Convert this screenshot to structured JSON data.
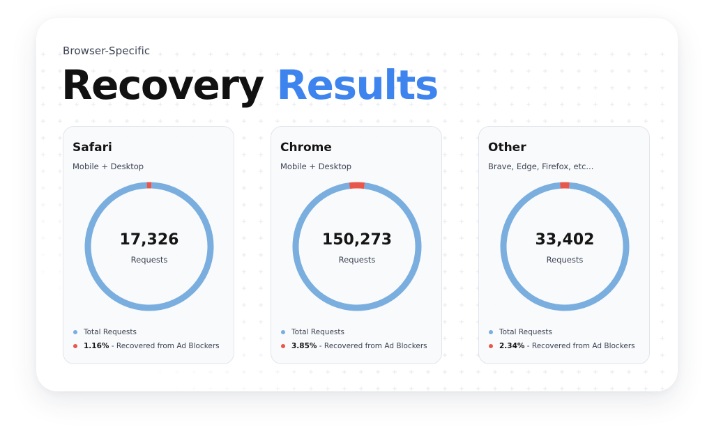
{
  "header": {
    "kicker": "Browser-Specific",
    "title_main": "Recovery",
    "title_accent": "Results"
  },
  "colors": {
    "total": "#7aaede",
    "recovered": "#e8574c",
    "accent": "#3d84ee"
  },
  "legend": {
    "total_label": "Total Requests",
    "recovered_suffix": " - Recovered from Ad Blockers"
  },
  "chart_data": [
    {
      "type": "pie",
      "title": "Safari",
      "subtitle": "Mobile + Desktop",
      "center_value": "17,326",
      "center_label": "Requests",
      "recovered_pct_label": "1.16%",
      "slices": [
        {
          "name": "Recovered from Ad Blockers",
          "value": 1.16
        },
        {
          "name": "Total Requests",
          "value": 98.84
        }
      ]
    },
    {
      "type": "pie",
      "title": "Chrome",
      "subtitle": "Mobile + Desktop",
      "center_value": "150,273",
      "center_label": "Requests",
      "recovered_pct_label": "3.85%",
      "slices": [
        {
          "name": "Recovered from Ad Blockers",
          "value": 3.85
        },
        {
          "name": "Total Requests",
          "value": 96.15
        }
      ]
    },
    {
      "type": "pie",
      "title": "Other",
      "subtitle": "Brave, Edge, Firefox, etc...",
      "center_value": "33,402",
      "center_label": "Requests",
      "recovered_pct_label": "2.34%",
      "slices": [
        {
          "name": "Recovered from Ad Blockers",
          "value": 2.34
        },
        {
          "name": "Total Requests",
          "value": 97.66
        }
      ]
    }
  ]
}
